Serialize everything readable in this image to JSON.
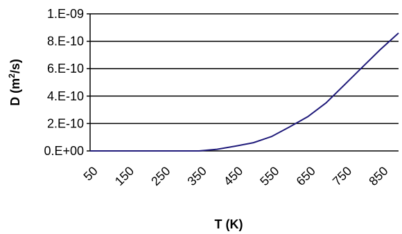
{
  "chart_data": {
    "type": "line",
    "title": "",
    "xlabel": "T (K)",
    "ylabel_main": "D (m",
    "ylabel_sup": "2",
    "ylabel_end": "/s)",
    "x_ticks": [
      "50",
      "150",
      "250",
      "350",
      "450",
      "550",
      "650",
      "750",
      "850"
    ],
    "y_ticks": [
      "0.E+00",
      "2.E-10",
      "4.E-10",
      "6.E-10",
      "8.E-10",
      "1.E-09"
    ],
    "ylim": [
      0,
      1e-09
    ],
    "xlim": [
      50,
      900
    ],
    "grid": true,
    "line_color": "#1f1a7a",
    "series": [
      {
        "x": [
          50,
          100,
          150,
          200,
          250,
          300,
          350,
          400,
          450,
          500,
          550,
          600,
          650,
          700,
          750,
          800,
          850,
          900
        ],
        "values": [
          0,
          0,
          0,
          0,
          0,
          0,
          0,
          1.2e-11,
          3.5e-11,
          6e-11,
          1.05e-10,
          1.75e-10,
          2.5e-10,
          3.5e-10,
          4.8e-10,
          6.1e-10,
          7.4e-10,
          8.6e-10
        ]
      }
    ]
  }
}
